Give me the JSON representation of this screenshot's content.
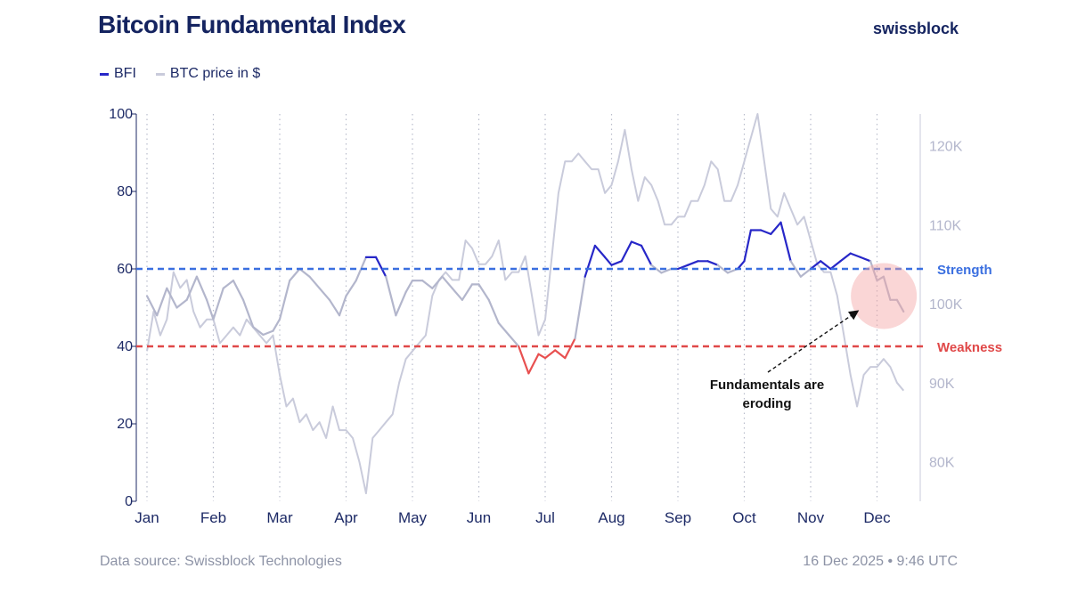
{
  "header": {
    "title": "Bitcoin Fundamental Index",
    "brand": "swissblock"
  },
  "legend": [
    {
      "label": "BFI",
      "color": "#2727c8"
    },
    {
      "label": "BTC price in $",
      "color": "#c9cbdb"
    }
  ],
  "footer": {
    "source": "Data source: Swissblock Technologies",
    "timestamp": "16 Dec 2025 • 9:46 UTC"
  },
  "chart_data": {
    "type": "line",
    "title": "Bitcoin Fundamental Index",
    "months": [
      "Jan",
      "Feb",
      "Mar",
      "Apr",
      "May",
      "Jun",
      "Jul",
      "Aug",
      "Sep",
      "Oct",
      "Nov",
      "Dec"
    ],
    "y_left": {
      "min": 0,
      "max": 100,
      "ticks": [
        0,
        20,
        40,
        60,
        80,
        100
      ]
    },
    "y_right": {
      "min": 75000,
      "max": 124000,
      "ticks": [
        {
          "value": 80000,
          "label": "80K"
        },
        {
          "value": 90000,
          "label": "90K"
        },
        {
          "value": 100000,
          "label": "100K"
        },
        {
          "value": 110000,
          "label": "110K"
        },
        {
          "value": 120000,
          "label": "120K"
        }
      ]
    },
    "thresholds": [
      {
        "label": "Strength",
        "value": 60,
        "color": "#3a6fe0"
      },
      {
        "label": "Weakness",
        "value": 40,
        "color": "#e04848"
      }
    ],
    "series": [
      {
        "name": "BFI",
        "axis": "left",
        "color_mid": "#b3b6cc",
        "color_high": "#2727c8",
        "color_low": "#e85050",
        "x": [
          0,
          0.15,
          0.3,
          0.45,
          0.6,
          0.75,
          0.9,
          1.0,
          1.15,
          1.3,
          1.45,
          1.6,
          1.75,
          1.9,
          2.0,
          2.15,
          2.3,
          2.45,
          2.6,
          2.75,
          2.9,
          3.0,
          3.15,
          3.3,
          3.45,
          3.6,
          3.75,
          3.9,
          4.0,
          4.15,
          4.3,
          4.45,
          4.6,
          4.75,
          4.9,
          5.0,
          5.15,
          5.3,
          5.45,
          5.6,
          5.75,
          5.9,
          6.0,
          6.15,
          6.3,
          6.45,
          6.6,
          6.75,
          6.9,
          7.0,
          7.15,
          7.3,
          7.45,
          7.6,
          7.75,
          7.9,
          8.0,
          8.15,
          8.3,
          8.45,
          8.6,
          8.75,
          8.9,
          9.0,
          9.1,
          9.25,
          9.4,
          9.55,
          9.7,
          9.85,
          10.0,
          10.15,
          10.3,
          10.45,
          10.6,
          10.75,
          10.9,
          11.0,
          11.1,
          11.2,
          11.3,
          11.4
        ],
        "values": [
          53,
          48,
          55,
          50,
          52,
          58,
          52,
          47,
          55,
          57,
          52,
          45,
          43,
          44,
          47,
          57,
          60,
          58,
          55,
          52,
          48,
          53,
          57,
          63,
          63,
          58,
          48,
          54,
          57,
          57,
          55,
          58,
          55,
          52,
          56,
          56,
          52,
          46,
          43,
          40,
          33,
          38,
          37,
          39,
          37,
          42,
          58,
          66,
          63,
          61,
          62,
          67,
          66,
          61,
          59,
          60,
          60,
          61,
          62,
          62,
          61,
          59,
          60,
          62,
          70,
          70,
          69,
          72,
          62,
          58,
          60,
          62,
          60,
          62,
          64,
          63,
          62,
          57,
          58,
          52,
          52,
          49
        ],
        "gaps": []
      },
      {
        "name": "BTC price in $",
        "axis": "right",
        "color": "#c9cbdb",
        "x": [
          0,
          0.1,
          0.2,
          0.3,
          0.4,
          0.5,
          0.6,
          0.7,
          0.8,
          0.9,
          1.0,
          1.1,
          1.2,
          1.3,
          1.4,
          1.5,
          1.6,
          1.7,
          1.8,
          1.9,
          2.0,
          2.1,
          2.2,
          2.3,
          2.4,
          2.5,
          2.6,
          2.7,
          2.8,
          2.9,
          3.0,
          3.1,
          3.2,
          3.3,
          3.4,
          3.5,
          3.6,
          3.7,
          3.8,
          3.9,
          4.0,
          4.1,
          4.2,
          4.3,
          4.4,
          4.5,
          4.6,
          4.7,
          4.8,
          4.9,
          5.0,
          5.1,
          5.2,
          5.3,
          5.4,
          5.5,
          5.6,
          5.7,
          5.8,
          5.9,
          6.0,
          6.1,
          6.2,
          6.3,
          6.4,
          6.5,
          6.6,
          6.7,
          6.8,
          6.9,
          7.0,
          7.1,
          7.2,
          7.3,
          7.4,
          7.5,
          7.6,
          7.7,
          7.8,
          7.9,
          8.0,
          8.1,
          8.2,
          8.3,
          8.4,
          8.5,
          8.6,
          8.7,
          8.8,
          8.9,
          9.0,
          9.1,
          9.2,
          9.3,
          9.4,
          9.5,
          9.6,
          9.7,
          9.8,
          9.9,
          10.0,
          10.1,
          10.2,
          10.3,
          10.4,
          10.5,
          10.6,
          10.7,
          10.8,
          10.9,
          11.0,
          11.1,
          11.2,
          11.3,
          11.4
        ],
        "values": [
          94000,
          99000,
          96000,
          98000,
          104000,
          102000,
          103000,
          99000,
          97000,
          98000,
          98000,
          95000,
          96000,
          97000,
          96000,
          98000,
          97000,
          96000,
          95000,
          96000,
          91000,
          87000,
          88000,
          85000,
          86000,
          84000,
          85000,
          83000,
          87000,
          84000,
          84000,
          83000,
          80000,
          76000,
          83000,
          84000,
          85000,
          86000,
          90000,
          93000,
          94000,
          95000,
          96000,
          101000,
          103000,
          104000,
          103000,
          103000,
          108000,
          107000,
          105000,
          105000,
          106000,
          108000,
          103000,
          104000,
          104000,
          106000,
          101000,
          96000,
          98000,
          106000,
          114000,
          118000,
          118000,
          119000,
          118000,
          117000,
          117000,
          114000,
          115000,
          118000,
          122000,
          117000,
          113000,
          116000,
          115000,
          113000,
          110000,
          110000,
          111000,
          111000,
          113000,
          113000,
          115000,
          118000,
          117000,
          113000,
          113000,
          115000,
          118000,
          121000,
          124000,
          118000,
          112000,
          111000,
          114000,
          112000,
          110000,
          111000,
          108000,
          105000,
          104000,
          104000,
          101000,
          96000,
          91000,
          87000,
          91000,
          92000,
          92000,
          93000,
          92000,
          90000,
          89000
        ],
        "gaps": []
      }
    ],
    "annotations": [
      {
        "text_lines": [
          "Fundamentals are",
          "eroding"
        ],
        "target_x": 10.7,
        "target_value": 53
      }
    ],
    "grid": "vertical-dotted-monthly",
    "legend_position": "top-left"
  }
}
